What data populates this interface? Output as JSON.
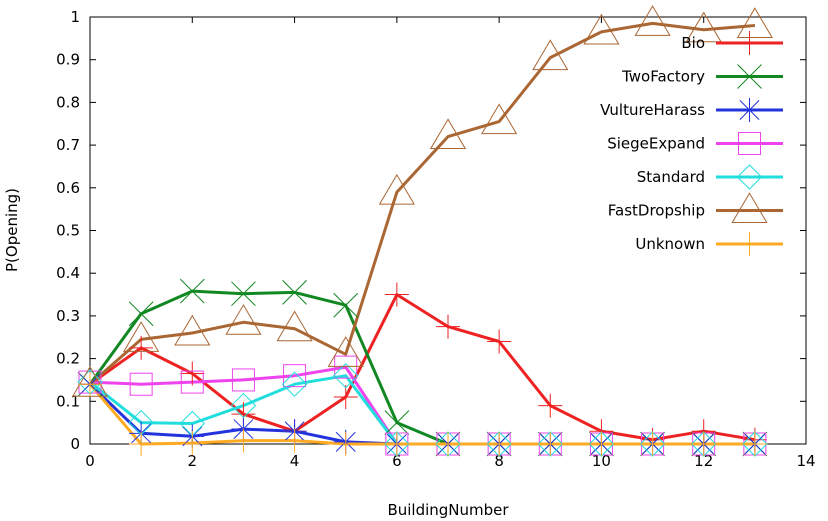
{
  "chart_data": {
    "type": "line",
    "xlabel": "BuildingNumber",
    "ylabel": "P(Opening)",
    "xlim": [
      0,
      14
    ],
    "ylim": [
      0,
      1
    ],
    "x_ticks": [
      "0",
      "2",
      "4",
      "6",
      "8",
      "10",
      "12",
      "14"
    ],
    "y_ticks": [
      "0",
      "0.1",
      "0.2",
      "0.3",
      "0.4",
      "0.5",
      "0.6",
      "0.7",
      "0.8",
      "0.9",
      "1"
    ],
    "legend_position": "top-right",
    "grid": false,
    "x": [
      0,
      1,
      2,
      3,
      4,
      5,
      6,
      7,
      8,
      9,
      10,
      11,
      12,
      13
    ],
    "series": [
      {
        "name": "Bio",
        "color": "#ee2222",
        "marker": "plus",
        "values": [
          0.14,
          0.225,
          0.165,
          0.07,
          0.03,
          0.11,
          0.35,
          0.275,
          0.24,
          0.09,
          0.03,
          0.01,
          0.03,
          0.01
        ]
      },
      {
        "name": "TwoFactory",
        "color": "#118822",
        "marker": "x",
        "values": [
          0.14,
          0.305,
          0.358,
          0.352,
          0.355,
          0.325,
          0.05,
          0.0,
          0.0,
          0.0,
          0.0,
          0.0,
          0.0,
          0.0
        ]
      },
      {
        "name": "VultureHarass",
        "color": "#2233dd",
        "marker": "star",
        "values": [
          0.14,
          0.025,
          0.018,
          0.035,
          0.03,
          0.005,
          0.0,
          0.0,
          0.0,
          0.0,
          0.0,
          0.0,
          0.0,
          0.0
        ]
      },
      {
        "name": "SiegeExpand",
        "color": "#ee44ee",
        "marker": "square",
        "values": [
          0.145,
          0.14,
          0.145,
          0.15,
          0.16,
          0.18,
          0.0,
          0.0,
          0.0,
          0.0,
          0.0,
          0.0,
          0.0,
          0.0
        ]
      },
      {
        "name": "Standard",
        "color": "#22dddd",
        "marker": "diamond",
        "values": [
          0.145,
          0.05,
          0.048,
          0.09,
          0.14,
          0.16,
          0.0,
          0.0,
          0.0,
          0.0,
          0.0,
          0.0,
          0.0,
          0.0
        ]
      },
      {
        "name": "FastDropship",
        "color": "#aa6633",
        "marker": "triangle",
        "values": [
          0.14,
          0.245,
          0.26,
          0.285,
          0.27,
          0.21,
          0.59,
          0.72,
          0.755,
          0.905,
          0.965,
          0.985,
          0.97,
          0.98
        ]
      },
      {
        "name": "Unknown",
        "color": "#ffaa22",
        "marker": "plus",
        "values": [
          0.14,
          0.0,
          0.002,
          0.008,
          0.008,
          0.0,
          0.0,
          0.0,
          0.0,
          0.0,
          0.0,
          0.0,
          0.0,
          0.0
        ]
      }
    ]
  }
}
